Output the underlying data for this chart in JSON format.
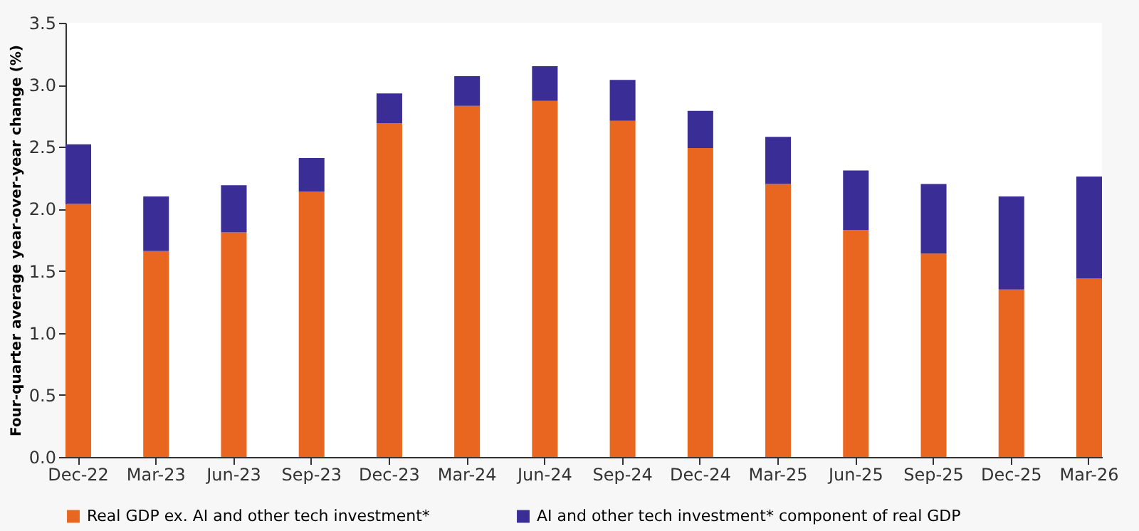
{
  "chart_data": {
    "type": "bar",
    "stacked": true,
    "ylabel": "Four-quarter average year-over-year change (%)",
    "categories": [
      "Dec-22",
      "Mar-23",
      "Jun-23",
      "Sep-23",
      "Dec-23",
      "Mar-24",
      "Jun-24",
      "Sep-24",
      "Dec-24",
      "Mar-25",
      "Jun-25",
      "Sep-25",
      "Dec-25",
      "Mar-26"
    ],
    "series": [
      {
        "name": "Real GDP ex. AI and other tech investment*",
        "color": "#e8661f",
        "values": [
          2.04,
          1.66,
          1.81,
          2.14,
          2.69,
          2.83,
          2.87,
          2.71,
          2.49,
          2.2,
          1.83,
          1.64,
          1.35,
          1.44
        ]
      },
      {
        "name": "AI and other tech investment* component of real GDP",
        "color": "#3b2d96",
        "values": [
          0.48,
          0.44,
          0.38,
          0.27,
          0.24,
          0.24,
          0.28,
          0.33,
          0.3,
          0.38,
          0.48,
          0.56,
          0.75,
          0.82
        ]
      }
    ],
    "ylim": [
      0,
      3.5
    ],
    "yticks": [
      {
        "value": 0,
        "label": "0.0"
      },
      {
        "value": 0.5,
        "label": "0.5"
      },
      {
        "value": 1,
        "label": "1.0"
      },
      {
        "value": 1.5,
        "label": "1.5"
      },
      {
        "value": 2,
        "label": "2.0"
      },
      {
        "value": 2.5,
        "label": "2.5"
      },
      {
        "value": 3,
        "label": "3.0"
      },
      {
        "value": 3.5,
        "label": "3.5"
      }
    ],
    "grid": false,
    "legend": "bottom"
  }
}
